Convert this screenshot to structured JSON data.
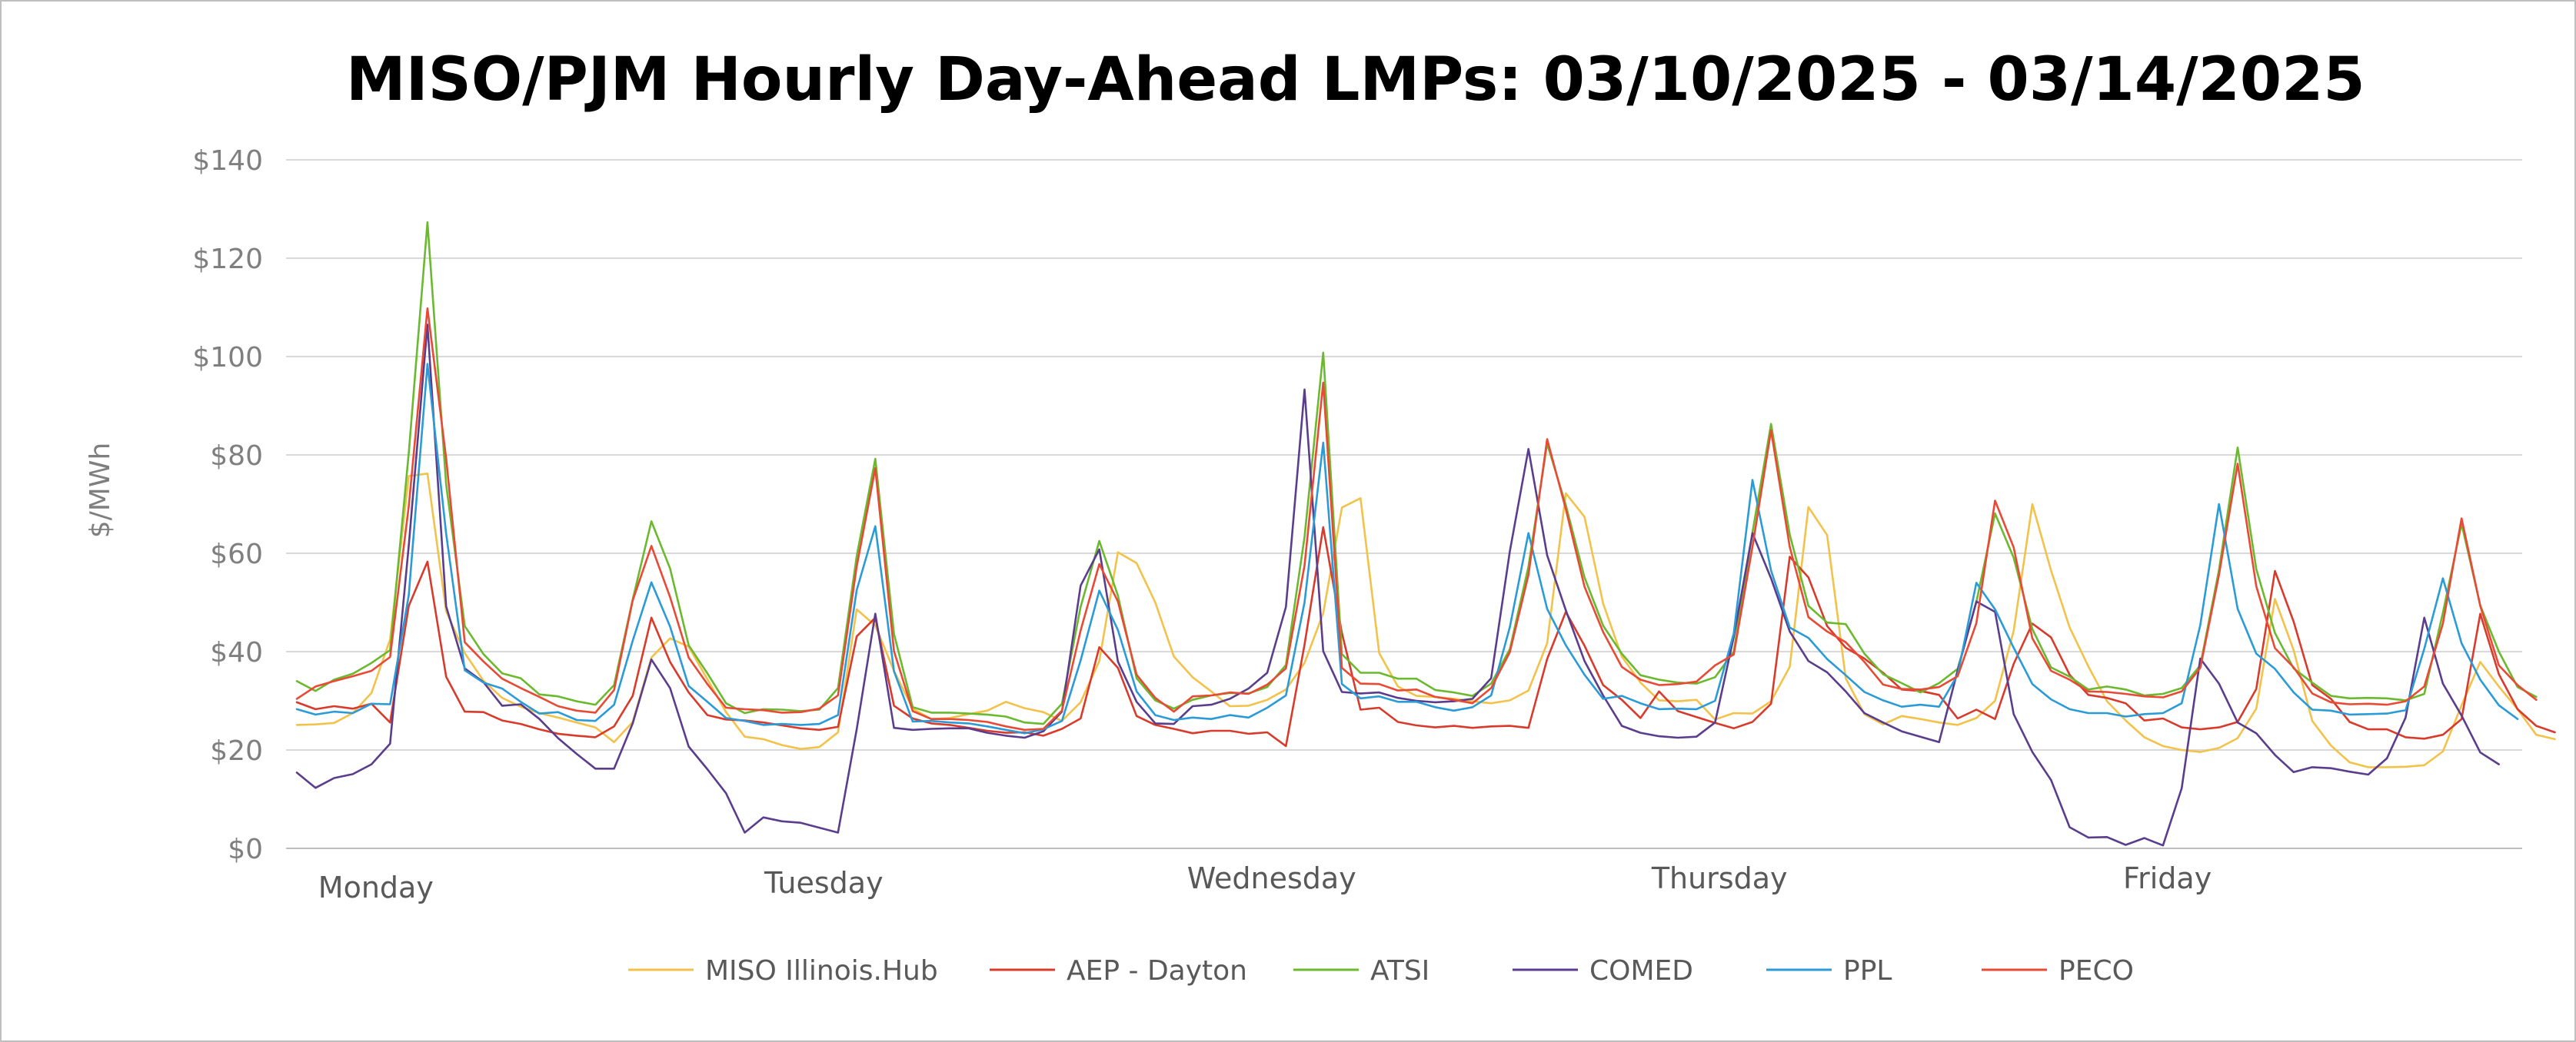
{
  "chart_data": {
    "type": "line",
    "title": "MISO/PJM Hourly Day-Ahead LMPs: 03/10/2025 - 03/14/2025",
    "ylabel": "$/MWh",
    "xlabel": "",
    "ylim": [
      0,
      140
    ],
    "yticks": [
      0,
      20,
      40,
      60,
      80,
      100,
      120,
      140
    ],
    "ytick_labels": [
      "$0",
      "$20",
      "$40",
      "$60",
      "$80",
      "$100",
      "$120",
      "$140"
    ],
    "x_labels": [
      "Monday",
      "Tuesday",
      "Wednesday",
      "Thursday",
      "Friday"
    ],
    "x_label_hours": [
      3,
      27,
      51,
      75,
      99
    ],
    "hours": 120,
    "grid": true,
    "legend_position": "bottom",
    "series": [
      {
        "name": "MISO Illinois.Hub",
        "color": "#f2c24b",
        "values": [
          25.1,
          25.2,
          25.5,
          27.5,
          31.6,
          42.5,
          75.7,
          76.2,
          48.2,
          39.7,
          34.1,
          30.6,
          28.8,
          27.5,
          26.6,
          25.6,
          24.6,
          21.6,
          25.7,
          38.8,
          42.7,
          41.0,
          34.4,
          27.7,
          22.7,
          22.2,
          21.0,
          20.2,
          20.6,
          23.6,
          48.6,
          45.3,
          36.1,
          28.4,
          26.3,
          26.5,
          27.3,
          28.0,
          29.8,
          28.5,
          27.7,
          25.9,
          29.7,
          38.1,
          60.2,
          58.0,
          50.0,
          39.0,
          34.8,
          31.9,
          28.9,
          29.0,
          30.2,
          32.3,
          37.7,
          47.8,
          69.3,
          71.2,
          39.7,
          32.9,
          31.0,
          30.8,
          30.4,
          29.9,
          29.5,
          30.1,
          32.1,
          41.7,
          72.2,
          67.4,
          49.8,
          39.0,
          33.7,
          30.1,
          29.9,
          30.2,
          26.2,
          27.5,
          27.4,
          29.9,
          36.9,
          69.4,
          63.7,
          34.6,
          27.3,
          25.2,
          26.9,
          26.3,
          25.6,
          25.1,
          26.5,
          30.0,
          44.2,
          70.0,
          56.5,
          44.9,
          37.0,
          29.9,
          26.0,
          22.6,
          20.8,
          20.0,
          19.6,
          20.4,
          22.4,
          28.4,
          50.7,
          40.3,
          25.9,
          20.9,
          17.5,
          16.5,
          16.5,
          16.6,
          16.9,
          19.7,
          29.1,
          37.9,
          32.9,
          28.3,
          23.1,
          22.2
        ]
      },
      {
        "name": "AEP - Dayton",
        "color": "#d83b2b",
        "values": [
          29.7,
          28.3,
          28.9,
          28.4,
          29.4,
          25.6,
          49.3,
          58.3,
          34.9,
          27.8,
          27.7,
          26.0,
          25.3,
          24.2,
          23.3,
          22.9,
          22.6,
          24.8,
          31.0,
          46.9,
          37.9,
          31.7,
          27.1,
          26.2,
          26.0,
          25.6,
          25.0,
          24.4,
          24.1,
          24.7,
          43.1,
          46.9,
          29.0,
          26.4,
          25.4,
          25.1,
          24.5,
          23.9,
          23.5,
          23.6,
          22.9,
          24.3,
          26.4,
          40.9,
          36.7,
          26.9,
          25.1,
          24.3,
          23.4,
          23.9,
          23.9,
          23.3,
          23.6,
          20.8,
          41.4,
          65.3,
          43.8,
          28.2,
          28.6,
          25.7,
          25.0,
          24.6,
          24.9,
          24.5,
          24.8,
          24.9,
          24.5,
          38.5,
          48.1,
          41.2,
          33.2,
          30.2,
          26.5,
          31.9,
          27.9,
          26.7,
          25.5,
          24.4,
          25.7,
          29.4,
          59.3,
          55.1,
          45.2,
          40.8,
          38.6,
          35.7,
          32.3,
          32.0,
          31.2,
          26.4,
          28.2,
          26.3,
          37.5,
          45.7,
          42.9,
          35.3,
          31.2,
          30.6,
          29.5,
          26.0,
          26.4,
          24.6,
          24.2,
          24.6,
          25.7,
          32.4,
          56.4,
          46.1,
          33.2,
          30.4,
          25.7,
          24.2,
          24.2,
          22.6,
          22.3,
          23.1,
          26.3,
          47.7,
          35.4,
          28.3,
          24.9,
          23.6
        ]
      },
      {
        "name": "ATSI",
        "color": "#6ab92f",
        "values": [
          34.0,
          32.0,
          34.3,
          35.5,
          37.7,
          40.3,
          80.4,
          127.3,
          74.0,
          45.2,
          39.5,
          35.6,
          34.6,
          31.3,
          30.9,
          29.9,
          29.2,
          33.2,
          50.6,
          66.5,
          56.9,
          41.3,
          35.6,
          29.5,
          27.5,
          28.3,
          28.2,
          27.9,
          28.2,
          32.6,
          59.4,
          79.2,
          43.6,
          28.7,
          27.6,
          27.6,
          27.4,
          27.2,
          26.8,
          25.6,
          25.3,
          29.4,
          49.1,
          62.5,
          51.4,
          34.6,
          30.1,
          28.4,
          30.2,
          31.1,
          31.6,
          31.5,
          32.8,
          37.3,
          63.3,
          100.8,
          39.5,
          35.7,
          35.7,
          34.5,
          34.5,
          32.2,
          31.7,
          31.0,
          33.5,
          40.5,
          57.3,
          82.3,
          69.8,
          55.1,
          45.3,
          39.6,
          35.2,
          34.3,
          33.7,
          33.5,
          34.8,
          40.0,
          64.2,
          86.3,
          63.8,
          49.3,
          45.9,
          45.6,
          39.6,
          35.4,
          33.6,
          31.7,
          33.6,
          36.5,
          50.1,
          68.1,
          59.1,
          44.6,
          36.8,
          34.9,
          32.3,
          32.9,
          32.3,
          31.1,
          31.4,
          32.6,
          37.2,
          56.6,
          81.5,
          56.8,
          43.8,
          36.6,
          33.7,
          31.0,
          30.5,
          30.6,
          30.5,
          30.1,
          31.4,
          47.9,
          66.0,
          49.4,
          40.0,
          32.8,
          30.8
        ]
      },
      {
        "name": "COMED",
        "color": "#5a3d8c",
        "values": [
          15.4,
          12.3,
          14.3,
          15.1,
          17.1,
          21.3,
          61.6,
          106.5,
          49.2,
          36.6,
          33.8,
          29.0,
          29.3,
          26.3,
          22.4,
          19.2,
          16.2,
          16.2,
          25.4,
          38.4,
          32.6,
          20.7,
          16.1,
          11.2,
          3.2,
          6.3,
          5.5,
          5.2,
          4.2,
          3.2,
          24.2,
          47.7,
          24.5,
          24.1,
          24.3,
          24.4,
          24.4,
          23.5,
          22.9,
          22.5,
          23.8,
          27.8,
          53.4,
          60.8,
          38.0,
          29.8,
          25.4,
          25.3,
          28.9,
          29.2,
          30.4,
          32.5,
          35.7,
          49.1,
          93.3,
          40.1,
          31.8,
          31.5,
          31.7,
          30.6,
          30.0,
          29.7,
          29.9,
          30.4,
          34.6,
          60.4,
          81.2,
          59.6,
          48.4,
          38.1,
          31.1,
          24.9,
          23.5,
          22.8,
          22.5,
          22.7,
          25.6,
          43.0,
          64.1,
          54.9,
          44.1,
          38.1,
          35.8,
          31.9,
          27.5,
          25.6,
          23.8,
          22.7,
          21.6,
          36.2,
          50.2,
          48.1,
          27.3,
          19.6,
          13.9,
          4.3,
          2.2,
          2.3,
          0.7,
          2.1,
          0.6,
          12.2,
          38.6,
          33.5,
          25.6,
          23.4,
          19.0,
          15.5,
          16.5,
          16.3,
          15.6,
          15.0,
          18.3,
          26.6,
          46.9,
          33.5,
          27.0,
          19.5,
          17.1
        ]
      },
      {
        "name": "PPL",
        "color": "#2b9bd8",
        "values": [
          28.3,
          27.2,
          27.8,
          27.5,
          29.4,
          29.3,
          51.5,
          98.5,
          64.0,
          36.2,
          33.7,
          32.5,
          29.8,
          27.4,
          27.7,
          26.1,
          25.9,
          29.2,
          42.2,
          54.1,
          45.1,
          33.0,
          29.8,
          26.5,
          25.9,
          25.1,
          25.3,
          25.1,
          25.3,
          27.1,
          52.5,
          65.5,
          36.0,
          25.8,
          25.9,
          25.6,
          25.4,
          24.8,
          24.1,
          23.4,
          24.2,
          25.9,
          38.2,
          52.4,
          44.4,
          31.9,
          27.1,
          26.1,
          26.6,
          26.3,
          27.1,
          26.6,
          28.6,
          31.1,
          50.0,
          82.5,
          33.4,
          30.5,
          30.9,
          29.8,
          29.8,
          28.7,
          28.0,
          28.7,
          31.1,
          45.0,
          64.1,
          48.7,
          41.3,
          35.3,
          30.4,
          31.0,
          29.5,
          28.3,
          28.4,
          28.3,
          30.0,
          43.7,
          74.9,
          56.5,
          44.9,
          42.8,
          38.5,
          35.2,
          31.8,
          30.1,
          28.8,
          29.2,
          28.8,
          35.3,
          54.0,
          48.6,
          40.8,
          33.4,
          30.3,
          28.3,
          27.5,
          27.5,
          26.8,
          27.3,
          27.5,
          29.5,
          45.4,
          70.0,
          48.7,
          39.6,
          36.5,
          31.7,
          28.2,
          28.0,
          27.2,
          27.3,
          27.4,
          28.1,
          40.6,
          54.9,
          41.7,
          34.3,
          29.1,
          26.3
        ]
      },
      {
        "name": "PECO",
        "color": "#e84a35",
        "values": [
          30.4,
          32.9,
          34.0,
          35.0,
          36.1,
          38.9,
          69.6,
          109.8,
          79.3,
          41.9,
          38.0,
          34.5,
          32.6,
          30.8,
          28.9,
          28.0,
          27.6,
          32.2,
          50.4,
          61.5,
          51.1,
          38.8,
          33.4,
          28.6,
          28.3,
          28.1,
          27.6,
          27.7,
          28.4,
          31.1,
          57.3,
          77.3,
          40.1,
          27.9,
          26.3,
          26.3,
          26.1,
          25.7,
          24.8,
          24.1,
          24.3,
          28.0,
          44.3,
          57.8,
          50.2,
          35.3,
          30.6,
          27.8,
          30.9,
          31.1,
          31.7,
          31.4,
          33.3,
          36.6,
          57.5,
          94.7,
          36.7,
          33.5,
          33.4,
          32.1,
          32.3,
          30.8,
          30.2,
          29.5,
          32.6,
          39.9,
          55.6,
          83.2,
          69.0,
          53.2,
          44.0,
          36.9,
          34.3,
          33.2,
          33.4,
          33.9,
          37.2,
          39.4,
          61.3,
          85.0,
          61.3,
          47.0,
          44.1,
          41.9,
          37.9,
          33.3,
          32.4,
          32.3,
          32.8,
          35.0,
          45.8,
          70.7,
          61.2,
          42.7,
          36.1,
          34.3,
          31.9,
          31.8,
          31.4,
          30.9,
          30.7,
          31.9,
          36.7,
          55.6,
          78.2,
          53.3,
          40.7,
          36.8,
          31.5,
          29.7,
          29.3,
          29.4,
          29.2,
          29.9,
          32.9,
          45.7,
          67.1,
          49.3,
          37.2,
          33.2,
          30.2
        ]
      }
    ]
  }
}
